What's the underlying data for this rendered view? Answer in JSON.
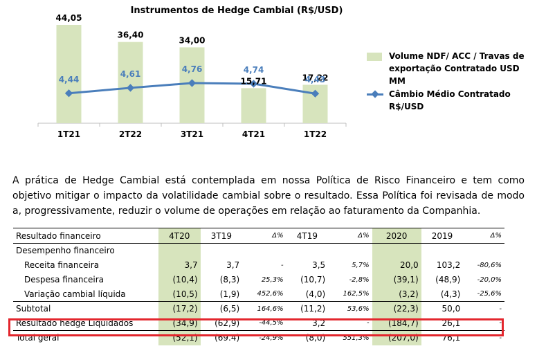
{
  "chart_data": {
    "type": "bar",
    "title": "Instrumentos de Hedge Cambial (R$/USD)",
    "categories": [
      "1T21",
      "2T22",
      "3T21",
      "4T21",
      "1T22"
    ],
    "series": [
      {
        "name": "Volume NDF/ ACC / Travas de exportação Contratado USD MM",
        "kind": "bar",
        "color": "#d7e4bd",
        "values": [
          44.05,
          36.4,
          34.0,
          15.71,
          17.22
        ],
        "labels": [
          "44,05",
          "36,40",
          "34,00",
          "15,71",
          "17,22"
        ]
      },
      {
        "name": "Câmbio Médio Contratado R$/USD",
        "kind": "line",
        "color": "#4a7ebb",
        "values": [
          4.44,
          4.61,
          4.76,
          4.74,
          4.43
        ],
        "labels": [
          "4,44",
          "4,61",
          "4,76",
          "4,74",
          "4,43"
        ]
      }
    ],
    "legend_position": "right"
  },
  "legend": {
    "bar_label": "Volume NDF/ ACC / Travas de exportação Contratado USD MM",
    "line_label": "Câmbio Médio Contratado R$/USD"
  },
  "paragraph": "A prática de Hedge Cambial está contemplada em nossa Política de Risco Financeiro e tem como objetivo mitigar o impacto da volatilidade cambial sobre o resultado. Essa Política foi revisada de modo a, progressivamente, reduzir o volume de operações em relação ao faturamento da Companhia.",
  "table": {
    "header": [
      "Resultado financeiro",
      "4T20",
      "3T19",
      "Δ%",
      "4T19",
      "Δ%",
      "2020",
      "2019",
      "Δ%"
    ],
    "rows": [
      [
        "Desempenho financeiro",
        "",
        "",
        "",
        "",
        "",
        "",
        "",
        ""
      ],
      [
        "Receita financeira",
        "3,7",
        "3,7",
        "-",
        "3,5",
        "5,7%",
        "20,0",
        "103,2",
        "-80,6%"
      ],
      [
        "Despesa financeira",
        "(10,4)",
        "(8,3)",
        "25,3%",
        "(10,7)",
        "-2,8%",
        "(39,1)",
        "(48,9)",
        "-20,0%"
      ],
      [
        "Variação cambial líquida",
        "(10,5)",
        "(1,9)",
        "452,6%",
        "(4,0)",
        "162,5%",
        "(3,2)",
        "(4,3)",
        "-25,6%"
      ],
      [
        "Subtotal",
        "(17,2)",
        "(6,5)",
        "164,6%",
        "(11,2)",
        "53,6%",
        "(22,3)",
        "50,0",
        "-"
      ],
      [
        "Resultado hedge Liquidados",
        "(34,9)",
        "(62,9)",
        "-44,5%",
        "3,2",
        "-",
        "(184,7)",
        "26,1",
        "-"
      ],
      [
        "Total geral",
        "(52,1)",
        "(69.4)",
        "-24,9%",
        "(8,0)",
        "551,3%",
        "(207,0)",
        "76,1",
        "-"
      ]
    ]
  }
}
